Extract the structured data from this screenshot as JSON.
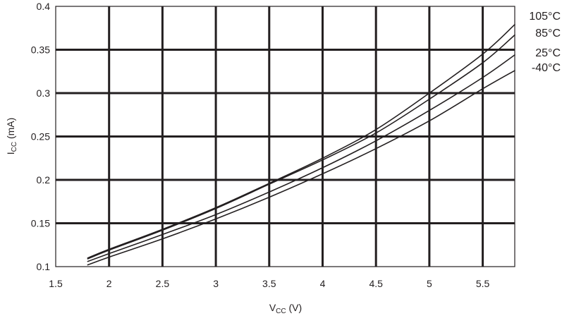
{
  "chart_data": {
    "type": "line",
    "xlabel": {
      "main": "V",
      "sub": "CC",
      "rest": " (V)"
    },
    "ylabel": {
      "main": "I",
      "sub": "CC",
      "rest": " (mA)"
    },
    "xlim": [
      1.5,
      5.8
    ],
    "ylim": [
      0.1,
      0.4
    ],
    "xticks": [
      1.5,
      2,
      2.5,
      3,
      3.5,
      4,
      4.5,
      5,
      5.5
    ],
    "xtick_labels": [
      "1.5",
      "2",
      "2.5",
      "3",
      "3.5",
      "4",
      "4.5",
      "5",
      "5.5"
    ],
    "yticks": [
      0.1,
      0.15,
      0.2,
      0.25,
      0.3,
      0.35,
      0.4
    ],
    "ytick_labels": [
      "0.1",
      "0.15",
      "0.2",
      "0.25",
      "0.3",
      "0.35",
      "0.4"
    ],
    "grid": true,
    "legend": "series labels at right end of curves",
    "line_color": "#231f20",
    "series": [
      {
        "name": "105°C",
        "x": [
          1.8,
          2.0,
          2.5,
          3.0,
          3.5,
          4.0,
          4.5,
          5.0,
          5.5,
          5.8
        ],
        "y": [
          0.11,
          0.12,
          0.143,
          0.168,
          0.196,
          0.225,
          0.258,
          0.3,
          0.345,
          0.379
        ]
      },
      {
        "name": "85°C",
        "x": [
          1.8,
          2.0,
          2.5,
          3.0,
          3.5,
          4.0,
          4.5,
          5.0,
          5.5,
          5.8
        ],
        "y": [
          0.109,
          0.119,
          0.142,
          0.167,
          0.195,
          0.223,
          0.254,
          0.293,
          0.335,
          0.367
        ]
      },
      {
        "name": "25°C",
        "x": [
          1.8,
          2.0,
          2.5,
          3.0,
          3.5,
          4.0,
          4.5,
          5.0,
          5.5,
          5.8
        ],
        "y": [
          0.106,
          0.115,
          0.137,
          0.16,
          0.186,
          0.214,
          0.245,
          0.28,
          0.318,
          0.344
        ]
      },
      {
        "name": "-40°C",
        "x": [
          1.8,
          2.0,
          2.5,
          3.0,
          3.5,
          4.0,
          4.5,
          5.0,
          5.5,
          5.8
        ],
        "y": [
          0.102,
          0.111,
          0.132,
          0.155,
          0.18,
          0.207,
          0.236,
          0.268,
          0.305,
          0.326
        ]
      }
    ]
  }
}
